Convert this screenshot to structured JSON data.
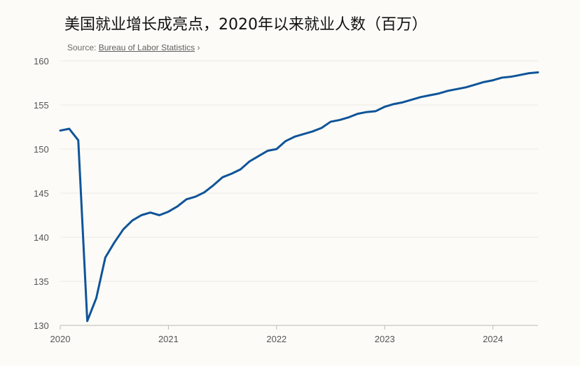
{
  "chart_data": {
    "type": "line",
    "title": "美国就业增长成亮点，2020年以来就业人数（百万）",
    "source_prefix": "Source: ",
    "source_name": "Bureau of Labor Statistics",
    "source_suffix": " ›",
    "xlabel": "",
    "ylabel": "",
    "xlim": [
      2020.0,
      2024.4167
    ],
    "ylim": [
      130,
      160
    ],
    "y_ticks": [
      130,
      135,
      140,
      145,
      150,
      155,
      160
    ],
    "x_ticks": [
      2020,
      2021,
      2022,
      2023,
      2024
    ],
    "x_tick_labels": [
      "2020",
      "2021",
      "2022",
      "2023",
      "2024"
    ],
    "grid": true,
    "line_color": "#0f5499",
    "series": [
      {
        "name": "",
        "x": [
          2020.0,
          2020.0833,
          2020.1667,
          2020.25,
          2020.3333,
          2020.4167,
          2020.5,
          2020.5833,
          2020.6667,
          2020.75,
          2020.8333,
          2020.9167,
          2021.0,
          2021.0833,
          2021.1667,
          2021.25,
          2021.3333,
          2021.4167,
          2021.5,
          2021.5833,
          2021.6667,
          2021.75,
          2021.8333,
          2021.9167,
          2022.0,
          2022.0833,
          2022.1667,
          2022.25,
          2022.3333,
          2022.4167,
          2022.5,
          2022.5833,
          2022.6667,
          2022.75,
          2022.8333,
          2022.9167,
          2023.0,
          2023.0833,
          2023.1667,
          2023.25,
          2023.3333,
          2023.4167,
          2023.5,
          2023.5833,
          2023.6667,
          2023.75,
          2023.8333,
          2023.9167,
          2024.0,
          2024.0833,
          2024.1667,
          2024.25,
          2024.3333,
          2024.4167
        ],
        "values": [
          152.1,
          152.3,
          151.0,
          130.5,
          133.1,
          137.7,
          139.4,
          140.9,
          141.9,
          142.5,
          142.8,
          142.5,
          142.9,
          143.5,
          144.3,
          144.6,
          145.1,
          145.9,
          146.8,
          147.2,
          147.7,
          148.6,
          149.2,
          149.8,
          150.0,
          150.9,
          151.4,
          151.7,
          152.0,
          152.4,
          153.1,
          153.3,
          153.6,
          154.0,
          154.2,
          154.3,
          154.8,
          155.1,
          155.3,
          155.6,
          155.9,
          156.1,
          156.3,
          156.6,
          156.8,
          157.0,
          157.3,
          157.6,
          157.8,
          158.1,
          158.2,
          158.4,
          158.6,
          158.7
        ]
      }
    ]
  }
}
